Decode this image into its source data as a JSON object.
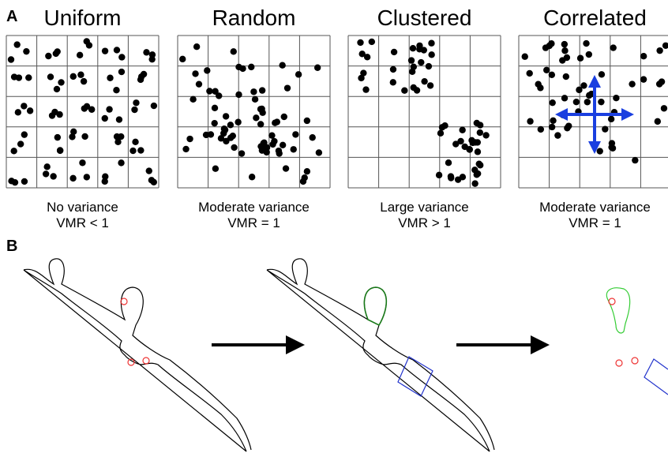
{
  "panel_a": {
    "label": "A",
    "panels": [
      {
        "title": "Uniform",
        "caption": [
          "No variance",
          "VMR < 1"
        ]
      },
      {
        "title": "Random",
        "caption": [
          "Moderate variance",
          "VMR = 1"
        ]
      },
      {
        "title": "Clustered",
        "caption": [
          "Large variance",
          "VMR > 1"
        ]
      },
      {
        "title": "Correlated",
        "caption": [
          "Moderate variance",
          "VMR = 1"
        ]
      }
    ]
  },
  "panel_b": {
    "label": "B"
  }
}
